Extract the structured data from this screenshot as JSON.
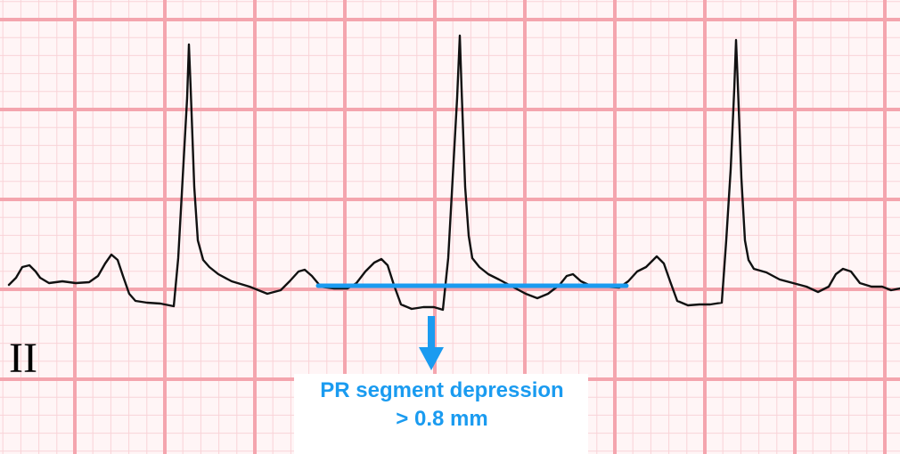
{
  "lead_label": "II",
  "annotation": {
    "line1": "PR segment depression",
    "line2": "> 0.8 mm"
  },
  "colors": {
    "grid_major": "#f4a5ae",
    "grid_minor": "#f9d3d8",
    "paper": "#fff5f6",
    "trace": "#111111",
    "annotation": "#1a9bf0"
  }
}
